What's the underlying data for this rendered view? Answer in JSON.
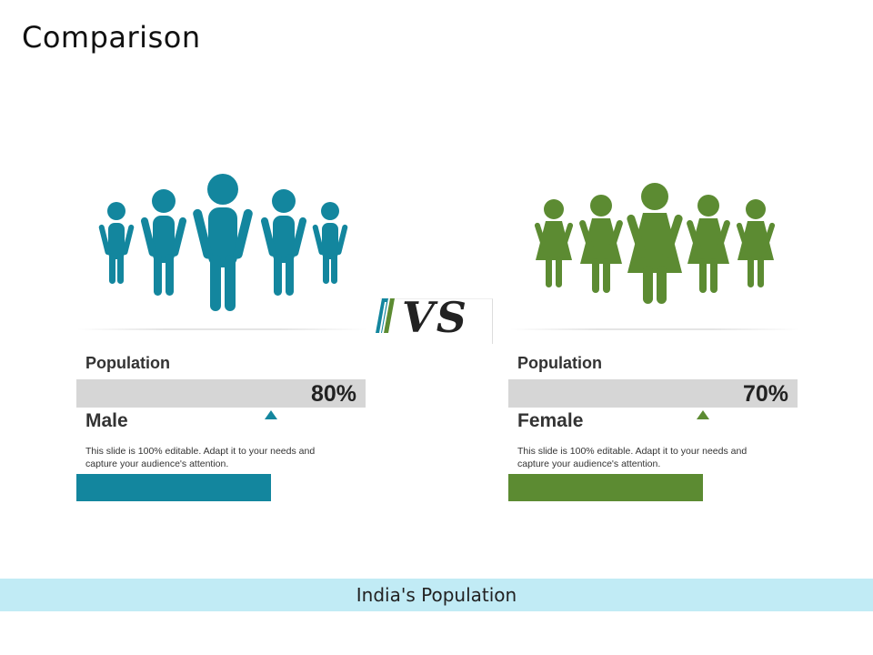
{
  "title": "Comparison",
  "vs_label": "VS",
  "colors": {
    "male": "#13869e",
    "female": "#5c8b32",
    "footer": "#c1ebf5",
    "bar_bg": "#d6d6d6"
  },
  "male": {
    "section_label": "Population",
    "percent": "80%",
    "gender_label": "Male",
    "description": "This slide is 100% editable. Adapt it to your needs and capture your audience's attention.",
    "icon": "male-group-icon"
  },
  "female": {
    "section_label": "Population",
    "percent": "70%",
    "gender_label": "Female",
    "description": "This slide is 100% editable. Adapt it to your needs and capture your audience's attention.",
    "icon": "female-group-icon"
  },
  "footer_text": "India's Population"
}
